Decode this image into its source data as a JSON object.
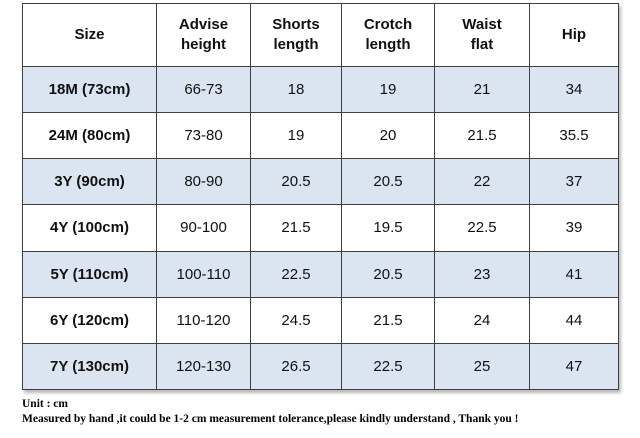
{
  "table": {
    "headers": [
      [
        "Size"
      ],
      [
        "Advise",
        "height"
      ],
      [
        "Shorts",
        "length"
      ],
      [
        "Crotch",
        "length"
      ],
      [
        "Waist",
        "flat"
      ],
      [
        "Hip"
      ]
    ],
    "rows": [
      [
        "18M (73cm)",
        "66-73",
        "18",
        "19",
        "21",
        "34"
      ],
      [
        "24M (80cm)",
        "73-80",
        "19",
        "20",
        "21.5",
        "35.5"
      ],
      [
        "3Y (90cm)",
        "80-90",
        "20.5",
        "20.5",
        "22",
        "37"
      ],
      [
        "4Y (100cm)",
        "90-100",
        "21.5",
        "19.5",
        "22.5",
        "39"
      ],
      [
        "5Y (110cm)",
        "100-110",
        "22.5",
        "20.5",
        "23",
        "41"
      ],
      [
        "6Y (120cm)",
        "110-120",
        "24.5",
        "21.5",
        "24",
        "44"
      ],
      [
        "7Y (130cm)",
        "120-130",
        "26.5",
        "22.5",
        "25",
        "47"
      ]
    ],
    "colors": {
      "shaded_row": "#dbe5f1",
      "plain_row": "#ffffff",
      "border": "#404040"
    }
  },
  "notes": {
    "unit": "Unit : cm",
    "tolerance": "Measured by hand ,it could be 1-2 cm measurement tolerance,please kindly understand , Thank you !"
  }
}
